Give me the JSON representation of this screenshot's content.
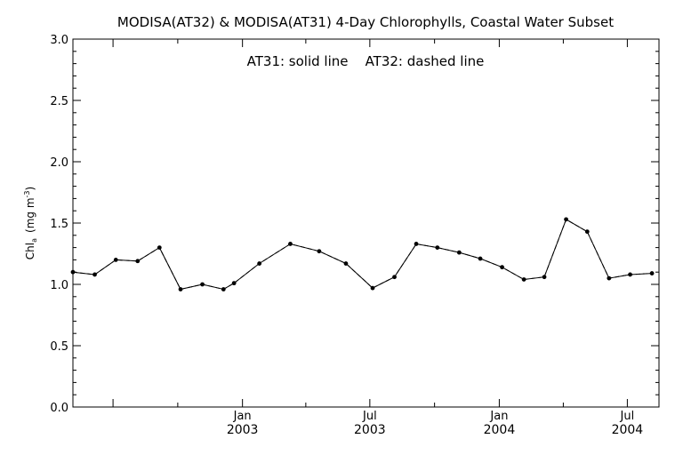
{
  "chart_data": {
    "type": "line",
    "title": "MODISA(AT32) & MODISA(AT31) 4-Day Chlorophylls, Coastal Water Subset",
    "annotation": "AT31: solid line    AT32: dashed line",
    "ylabel": "Chl",
    "ylabel_subscript": "a",
    "ylabel_units": "(mg m",
    "ylabel_units_exp": "-3",
    "ylabel_units_close": ")",
    "ylim": [
      0.0,
      3.0
    ],
    "yticks": [
      "0.0",
      "0.5",
      "1.0",
      "1.5",
      "2.0",
      "2.5",
      "3.0"
    ],
    "xticks": [
      {
        "month": "Jan",
        "year": "2003"
      },
      {
        "month": "Jul",
        "year": "2003"
      },
      {
        "month": "Jan",
        "year": "2004"
      },
      {
        "month": "Jul",
        "year": "2004"
      }
    ],
    "grid": false,
    "x_start": "2002-05-05",
    "x_end": "2004-08-15",
    "series": [
      {
        "name": "AT31",
        "line_style": "solid",
        "x": [
          "2002-05-05",
          "2002-06-05",
          "2002-07-05",
          "2002-08-05",
          "2002-09-05",
          "2002-10-05",
          "2002-11-05",
          "2002-12-05",
          "2002-12-20",
          "2003-01-25",
          "2003-03-10",
          "2003-04-20",
          "2003-05-28",
          "2003-07-05",
          "2003-08-05",
          "2003-09-05",
          "2003-10-05",
          "2003-11-05",
          "2003-12-05",
          "2004-01-05",
          "2004-02-05",
          "2004-03-05",
          "2004-04-05",
          "2004-05-05",
          "2004-06-05",
          "2004-07-05",
          "2004-08-05"
        ],
        "y": [
          1.1,
          1.08,
          1.2,
          1.19,
          1.3,
          0.96,
          1.0,
          0.96,
          1.01,
          1.17,
          1.33,
          1.27,
          1.17,
          0.97,
          1.06,
          1.33,
          1.3,
          1.26,
          1.21,
          1.14,
          1.04,
          1.06,
          1.53,
          1.43,
          1.05,
          1.08,
          1.09
        ]
      },
      {
        "name": "AT32",
        "line_style": "dashed",
        "x": [
          "2002-05-05",
          "2002-06-05",
          "2002-07-05",
          "2002-08-05",
          "2002-09-05",
          "2002-10-05",
          "2002-11-05",
          "2002-12-05",
          "2002-12-20",
          "2003-01-25",
          "2003-03-10",
          "2003-04-20",
          "2003-05-28",
          "2003-07-05",
          "2003-08-05",
          "2003-09-05",
          "2003-10-05",
          "2003-11-05",
          "2003-12-05",
          "2004-01-05",
          "2004-02-05",
          "2004-03-05",
          "2004-04-05",
          "2004-05-05",
          "2004-06-05",
          "2004-07-05",
          "2004-08-05"
        ],
        "y": [
          1.1,
          1.08,
          1.2,
          1.19,
          1.3,
          0.96,
          1.0,
          0.96,
          1.01,
          1.17,
          1.33,
          1.27,
          1.17,
          0.97,
          1.06,
          1.33,
          1.3,
          1.26,
          1.21,
          1.14,
          1.04,
          1.06,
          1.53,
          1.43,
          1.05,
          1.08,
          1.09
        ]
      }
    ]
  }
}
